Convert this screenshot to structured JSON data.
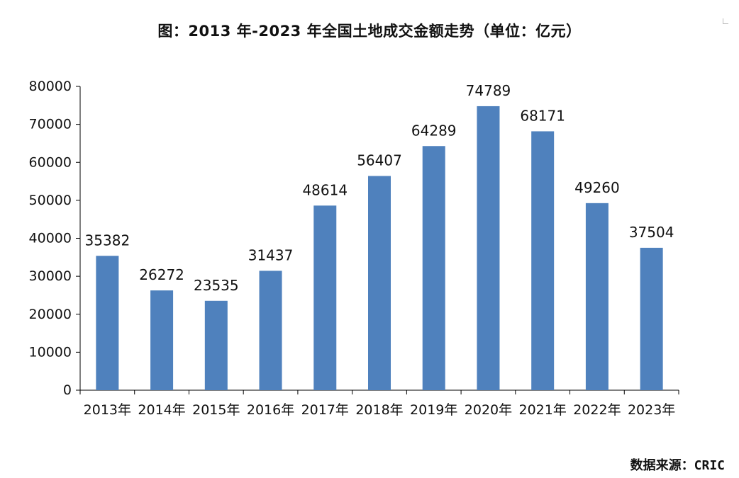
{
  "chart_data": {
    "type": "bar",
    "title": "图：2013 年-2023 年全国土地成交金额走势（单位：亿元）",
    "categories": [
      "2013年",
      "2014年",
      "2015年",
      "2016年",
      "2017年",
      "2018年",
      "2019年",
      "2020年",
      "2021年",
      "2022年",
      "2023年"
    ],
    "series": [
      {
        "values": [
          35382,
          26272,
          23535,
          31437,
          48614,
          56407,
          64289,
          74789,
          68171,
          49260,
          37504
        ]
      }
    ],
    "ylim": [
      0,
      80000
    ],
    "yticks": [
      0,
      10000,
      20000,
      30000,
      40000,
      50000,
      60000,
      70000,
      80000
    ],
    "data_labels": [
      "35382",
      "26272",
      "23535",
      "31437",
      "48614",
      "56407",
      "64289",
      "74789",
      "68171",
      "49260",
      "37504"
    ],
    "bar_color": "#4f81bd",
    "grid": false,
    "legend": "none"
  },
  "source": {
    "label": "数据来源：",
    "value": "CRIC"
  }
}
